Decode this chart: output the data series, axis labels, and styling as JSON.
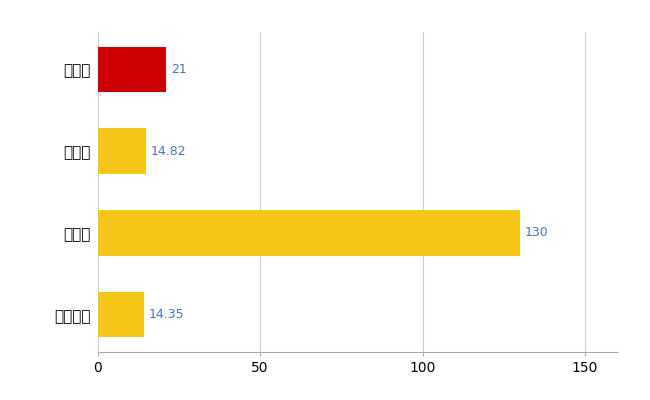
{
  "categories": [
    "全国平均",
    "県最大",
    "県平均",
    "朝霞市"
  ],
  "values": [
    14.35,
    130,
    14.82,
    21
  ],
  "bar_colors": [
    "#F5C518",
    "#F5C518",
    "#F5C518",
    "#CC0000"
  ],
  "value_labels": [
    "14.35",
    "130",
    "14.82",
    "21"
  ],
  "value_label_color": "#4472C4",
  "xlim": [
    0,
    160
  ],
  "xticks": [
    0,
    50,
    100,
    150
  ],
  "grid_color": "#CCCCCC",
  "background_color": "#FFFFFF",
  "bar_height": 0.55
}
